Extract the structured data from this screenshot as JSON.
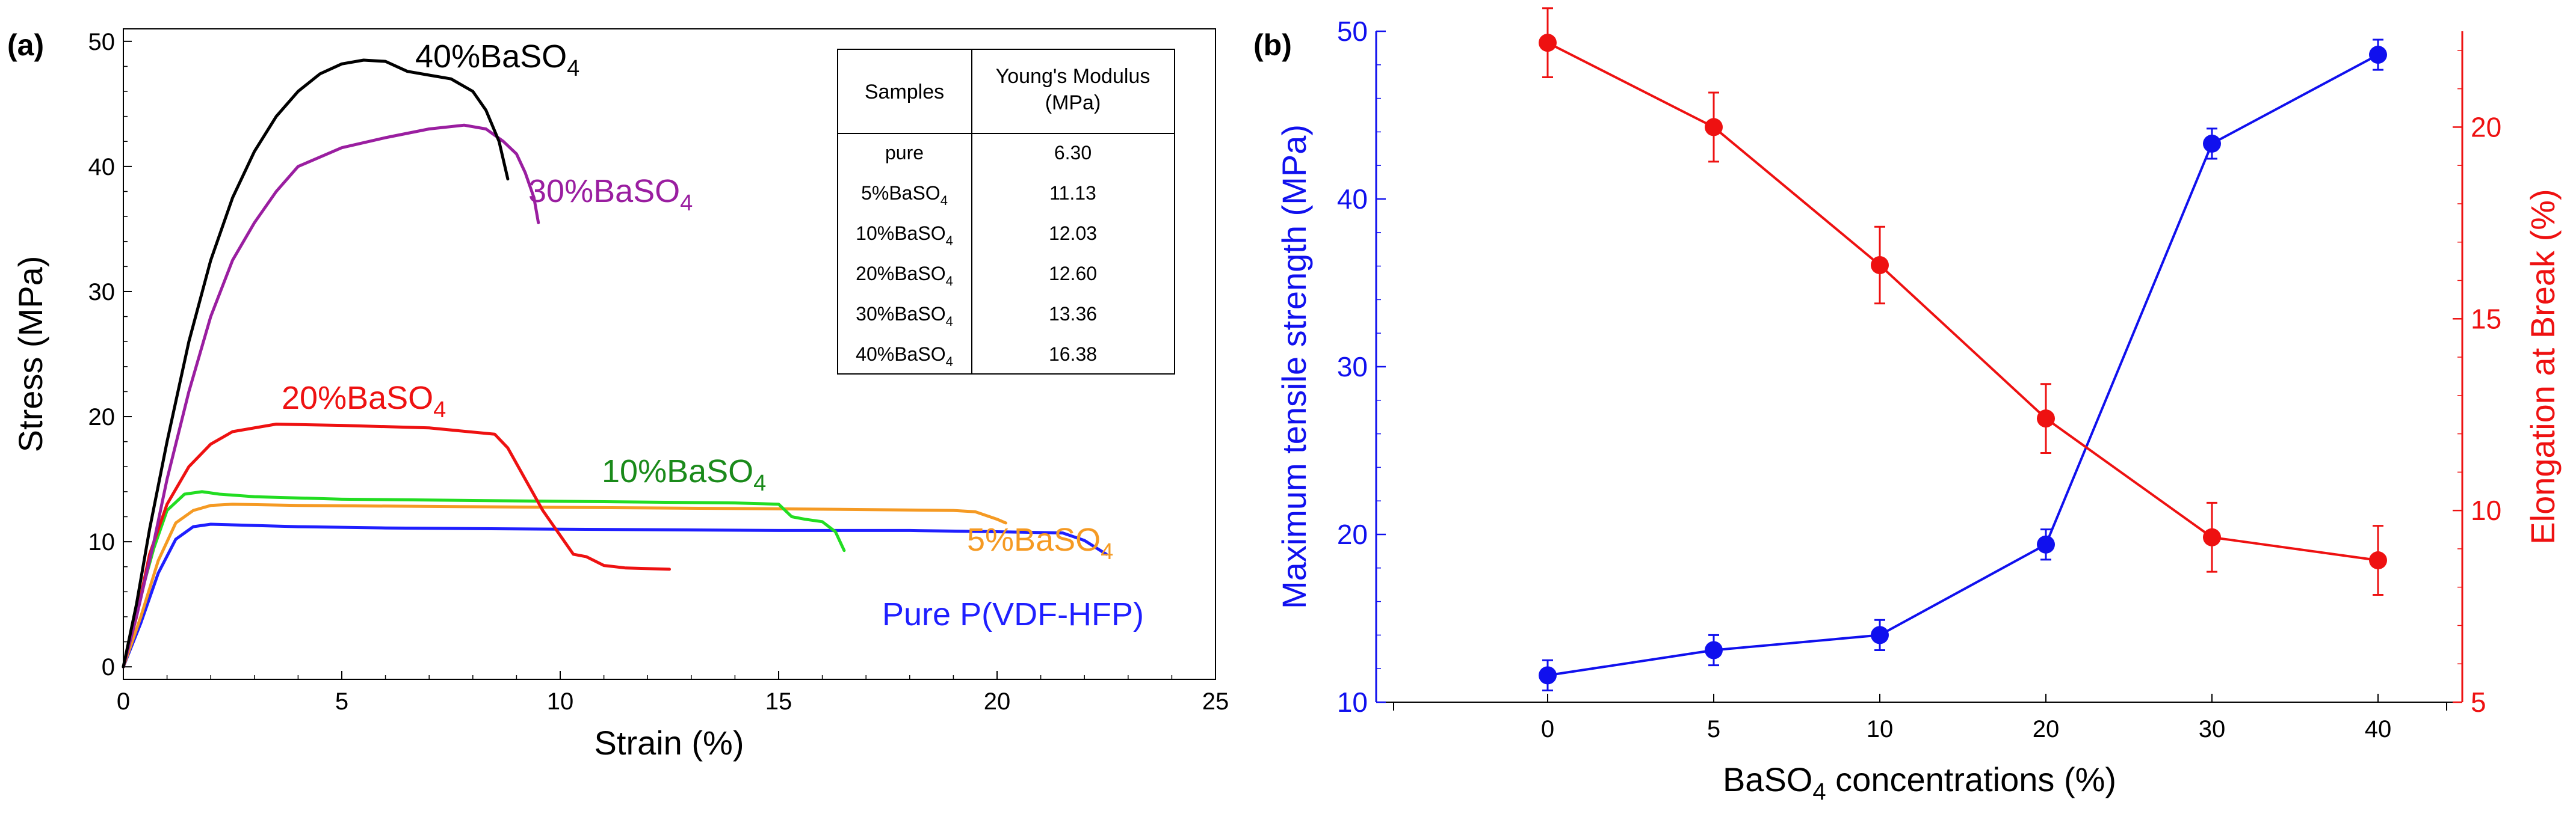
{
  "chart_data": [
    {
      "panel_label": "(a)",
      "type": "line",
      "xlabel": "Strain (%)",
      "ylabel": "Stress (MPa)",
      "xlim": [
        0,
        25
      ],
      "ylim": [
        -1,
        51
      ],
      "xticks": [
        0,
        5,
        10,
        15,
        20,
        25
      ],
      "yticks": [
        0,
        10,
        20,
        30,
        40,
        50
      ],
      "grid": false,
      "series": [
        {
          "name": "Pure P(VDF-HFP)",
          "label_main": "Pure P(VDF-HFP)",
          "label_sub": "",
          "color": "#1f1fff",
          "x": [
            0,
            0.4,
            0.8,
            1.2,
            1.6,
            2.0,
            3,
            4,
            6,
            10,
            15,
            18,
            20,
            21.5,
            22,
            22.5
          ],
          "y": [
            0,
            3.5,
            7.5,
            10.2,
            11.2,
            11.4,
            11.3,
            11.2,
            11.1,
            11.0,
            10.9,
            10.9,
            10.8,
            10.7,
            10.1,
            9.0
          ]
        },
        {
          "name": "5%BaSO4",
          "label_main": "5%BaSO",
          "label_sub": "4",
          "color": "#f59a23",
          "x": [
            0,
            0.4,
            0.8,
            1.2,
            1.6,
            2.0,
            2.5,
            4,
            8,
            12,
            16,
            19,
            19.5,
            20,
            20.2
          ],
          "y": [
            0,
            4.0,
            8.5,
            11.5,
            12.5,
            12.9,
            13.0,
            12.9,
            12.8,
            12.7,
            12.6,
            12.5,
            12.4,
            11.8,
            11.5
          ]
        },
        {
          "name": "10%BaSO4",
          "label_main": "10%BaSO",
          "label_sub": "4",
          "color": "#22dd22",
          "x": [
            0,
            0.3,
            0.7,
            1.0,
            1.4,
            1.8,
            2.2,
            3,
            5,
            8,
            11,
            14,
            15,
            15.3,
            15.6,
            16.0,
            16.3,
            16.5
          ],
          "y": [
            0,
            4.5,
            9.5,
            12.5,
            13.8,
            14.0,
            13.8,
            13.6,
            13.4,
            13.3,
            13.2,
            13.1,
            13.0,
            12.0,
            11.8,
            11.6,
            10.8,
            9.3
          ]
        },
        {
          "name": "20%BaSO4",
          "label_main": "20%BaSO",
          "label_sub": "4",
          "color": "#ee1111",
          "x": [
            0,
            0.3,
            0.6,
            1.0,
            1.5,
            2.0,
            2.5,
            3.5,
            5,
            7,
            8.5,
            8.8,
            9.2,
            9.6,
            10.0,
            10.3,
            10.6,
            11.0,
            11.5,
            12.5
          ],
          "y": [
            0,
            4.0,
            9.0,
            13.0,
            16.0,
            17.8,
            18.8,
            19.4,
            19.3,
            19.1,
            18.6,
            17.5,
            15.0,
            12.5,
            10.5,
            9.0,
            8.8,
            8.1,
            7.9,
            7.8
          ]
        },
        {
          "name": "30%BaSO4",
          "label_main": "30%BaSO",
          "label_sub": "4",
          "color": "#9a1ea0",
          "x": [
            0,
            0.3,
            0.7,
            1.0,
            1.5,
            2.0,
            2.5,
            3,
            3.5,
            4,
            5,
            6,
            7,
            7.8,
            8.3,
            8.7,
            9.0,
            9.2,
            9.4,
            9.5
          ],
          "y": [
            0,
            4,
            10,
            15,
            22,
            28,
            32.5,
            35.5,
            38,
            40,
            41.5,
            42.3,
            43.0,
            43.3,
            43.0,
            42.0,
            41.0,
            39.5,
            37.5,
            35.5
          ]
        },
        {
          "name": "40%BaSO4",
          "label_main": "40%BaSO",
          "label_sub": "4",
          "color": "#000000",
          "x": [
            0,
            0.3,
            0.6,
            1.0,
            1.5,
            2.0,
            2.5,
            3,
            3.5,
            4,
            4.5,
            5,
            5.5,
            6,
            6.5,
            7,
            7.5,
            8,
            8.3,
            8.6,
            8.8
          ],
          "y": [
            0,
            5,
            11,
            18,
            26,
            32.5,
            37.5,
            41.2,
            44,
            46,
            47.4,
            48.2,
            48.5,
            48.4,
            47.6,
            47.3,
            47.0,
            46.0,
            44.5,
            42.0,
            39.0
          ]
        }
      ],
      "table": {
        "headers": [
          "Samples",
          "Young's Modulus",
          "(MPa)"
        ],
        "rows": [
          {
            "sample_main": "pure",
            "sample_sub": "",
            "value": "6.30"
          },
          {
            "sample_main": "5%BaSO",
            "sample_sub": "4",
            "value": "11.13"
          },
          {
            "sample_main": "10%BaSO",
            "sample_sub": "4",
            "value": "12.03"
          },
          {
            "sample_main": "20%BaSO",
            "sample_sub": "4",
            "value": "12.60"
          },
          {
            "sample_main": "30%BaSO",
            "sample_sub": "4",
            "value": "13.36"
          },
          {
            "sample_main": "40%BaSO",
            "sample_sub": "4",
            "value": "16.38"
          }
        ]
      }
    },
    {
      "panel_label": "(b)",
      "type": "line",
      "xlabel_main": "BaSO",
      "xlabel_sub": "4",
      "xlabel_tail": " concentrations (%)",
      "categories": [
        "0",
        "5",
        "10",
        "20",
        "30",
        "40"
      ],
      "ylabel_left": "Maximum tensile strength (MPa)",
      "ylabel_right": "Elongation at Break (%)",
      "ylim_left": [
        10,
        50
      ],
      "ylim_right": [
        5,
        22.5
      ],
      "yticks_left": [
        10,
        20,
        30,
        40,
        50
      ],
      "yticks_right": [
        5,
        10,
        15,
        20
      ],
      "series": [
        {
          "name": "Maximum tensile strength",
          "axis": "left",
          "color": "#1010ee",
          "values": [
            11.6,
            13.1,
            14.0,
            19.4,
            43.3,
            48.6
          ],
          "errors": [
            0.9,
            0.9,
            0.9,
            0.9,
            0.9,
            0.9
          ]
        },
        {
          "name": "Elongation at Break",
          "axis": "right",
          "color": "#ee1111",
          "values": [
            22.2,
            20.0,
            16.4,
            12.4,
            9.3,
            8.7
          ],
          "errors": [
            0.9,
            0.9,
            1.0,
            0.9,
            0.9,
            0.9
          ]
        }
      ]
    }
  ]
}
